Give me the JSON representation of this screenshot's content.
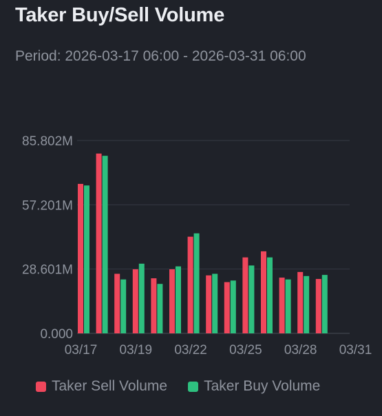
{
  "title": "Taker Buy/Sell Volume",
  "period": "Period: 2026-03-17 06:00 - 2026-03-31 06:00",
  "colors": {
    "background": "#1f2229",
    "sell": "#f0475c",
    "buy": "#2ec07f",
    "grid": "#363a44",
    "axis_text": "#8f949e"
  },
  "legend": [
    {
      "label": "Taker Sell Volume",
      "series": "sell"
    },
    {
      "label": "Taker Buy Volume",
      "series": "buy"
    }
  ],
  "chart_data": {
    "type": "bar",
    "title": "",
    "xlabel": "",
    "ylabel": "",
    "ylim": [
      0,
      85.802
    ],
    "y_ticks": [
      "0.000",
      "28.601M",
      "57.201M",
      "85.802M"
    ],
    "y_tick_values": [
      0,
      28.601,
      57.201,
      85.802
    ],
    "x_ticks": [
      "03/17",
      "03/19",
      "03/22",
      "03/25",
      "03/28",
      "03/31"
    ],
    "x_tick_positions": [
      0,
      3,
      6,
      9,
      12,
      15
    ],
    "grid": true,
    "legend_position": "bottom",
    "categories": [
      "03/17",
      "03/18",
      "03/19",
      "03/20",
      "03/21",
      "03/22",
      "03/23",
      "03/24",
      "03/25",
      "03/26",
      "03/27",
      "03/28",
      "03/29",
      "03/30"
    ],
    "series": [
      {
        "name": "Taker Sell Volume",
        "key": "sell",
        "values": [
          66.5,
          80.0,
          26.5,
          28.5,
          24.5,
          28.5,
          43.0,
          25.8,
          22.8,
          33.8,
          36.5,
          24.8,
          27.3,
          24.2
        ]
      },
      {
        "name": "Taker Buy Volume",
        "key": "buy",
        "values": [
          65.8,
          79.0,
          24.0,
          31.0,
          22.0,
          29.8,
          44.5,
          26.5,
          23.5,
          30.2,
          33.8,
          24.0,
          25.5,
          26.0
        ]
      }
    ]
  }
}
